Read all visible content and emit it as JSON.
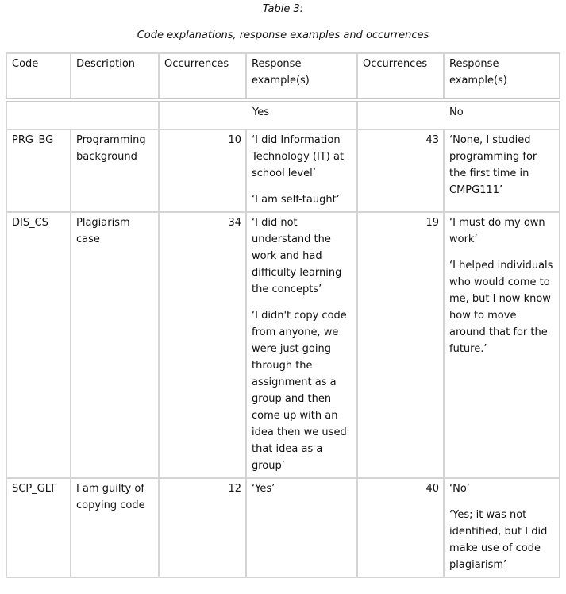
{
  "caption": {
    "title": "Table 3:",
    "subtitle": "Code explanations, response examples and occurrences"
  },
  "table": {
    "headers": [
      "Code",
      "Description",
      "Occurrences",
      "Response example(s)",
      "Occurrences",
      "Response example(s)"
    ],
    "groups": {
      "yes": "Yes",
      "no": "No"
    },
    "rows": [
      {
        "code": "PRG_BG",
        "description": "Programming background",
        "yes_count": "10",
        "yes_examples": [
          "‘I did Information Technology (IT) at school level’",
          "‘I am self-taught’"
        ],
        "no_count": "43",
        "no_examples": [
          "‘None, I studied programming for the first time in CMPG111’"
        ]
      },
      {
        "code": "DIS_CS",
        "description": "Plagiarism case",
        "yes_count": "34",
        "yes_examples": [
          "‘I did not understand the work and had difficulty learning the concepts’",
          "‘I didn't copy code from anyone, we were just going through the assignment as a group and then come up with an idea then we used that idea as a group’"
        ],
        "no_count": "19",
        "no_examples": [
          "‘I must do my own work’",
          "‘I helped individuals who would come to me, but I now know how to move around that for the future.’"
        ]
      },
      {
        "code": "SCP_GLT",
        "description": "I am guilty of copying code",
        "yes_count": "12",
        "yes_examples": [
          "‘Yes’"
        ],
        "no_count": "40",
        "no_examples": [
          "‘No’",
          "‘Yes; it was not identified, but I did make use of code plagiarism’"
        ]
      }
    ]
  }
}
